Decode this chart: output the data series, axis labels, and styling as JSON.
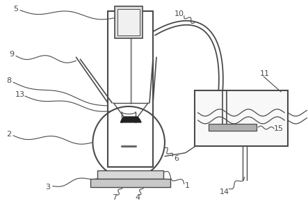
{
  "bg_color": "#ffffff",
  "line_color": "#4a4a4a",
  "label_color": "#333333",
  "fig_width": 4.43,
  "fig_height": 2.99,
  "dpi": 100
}
